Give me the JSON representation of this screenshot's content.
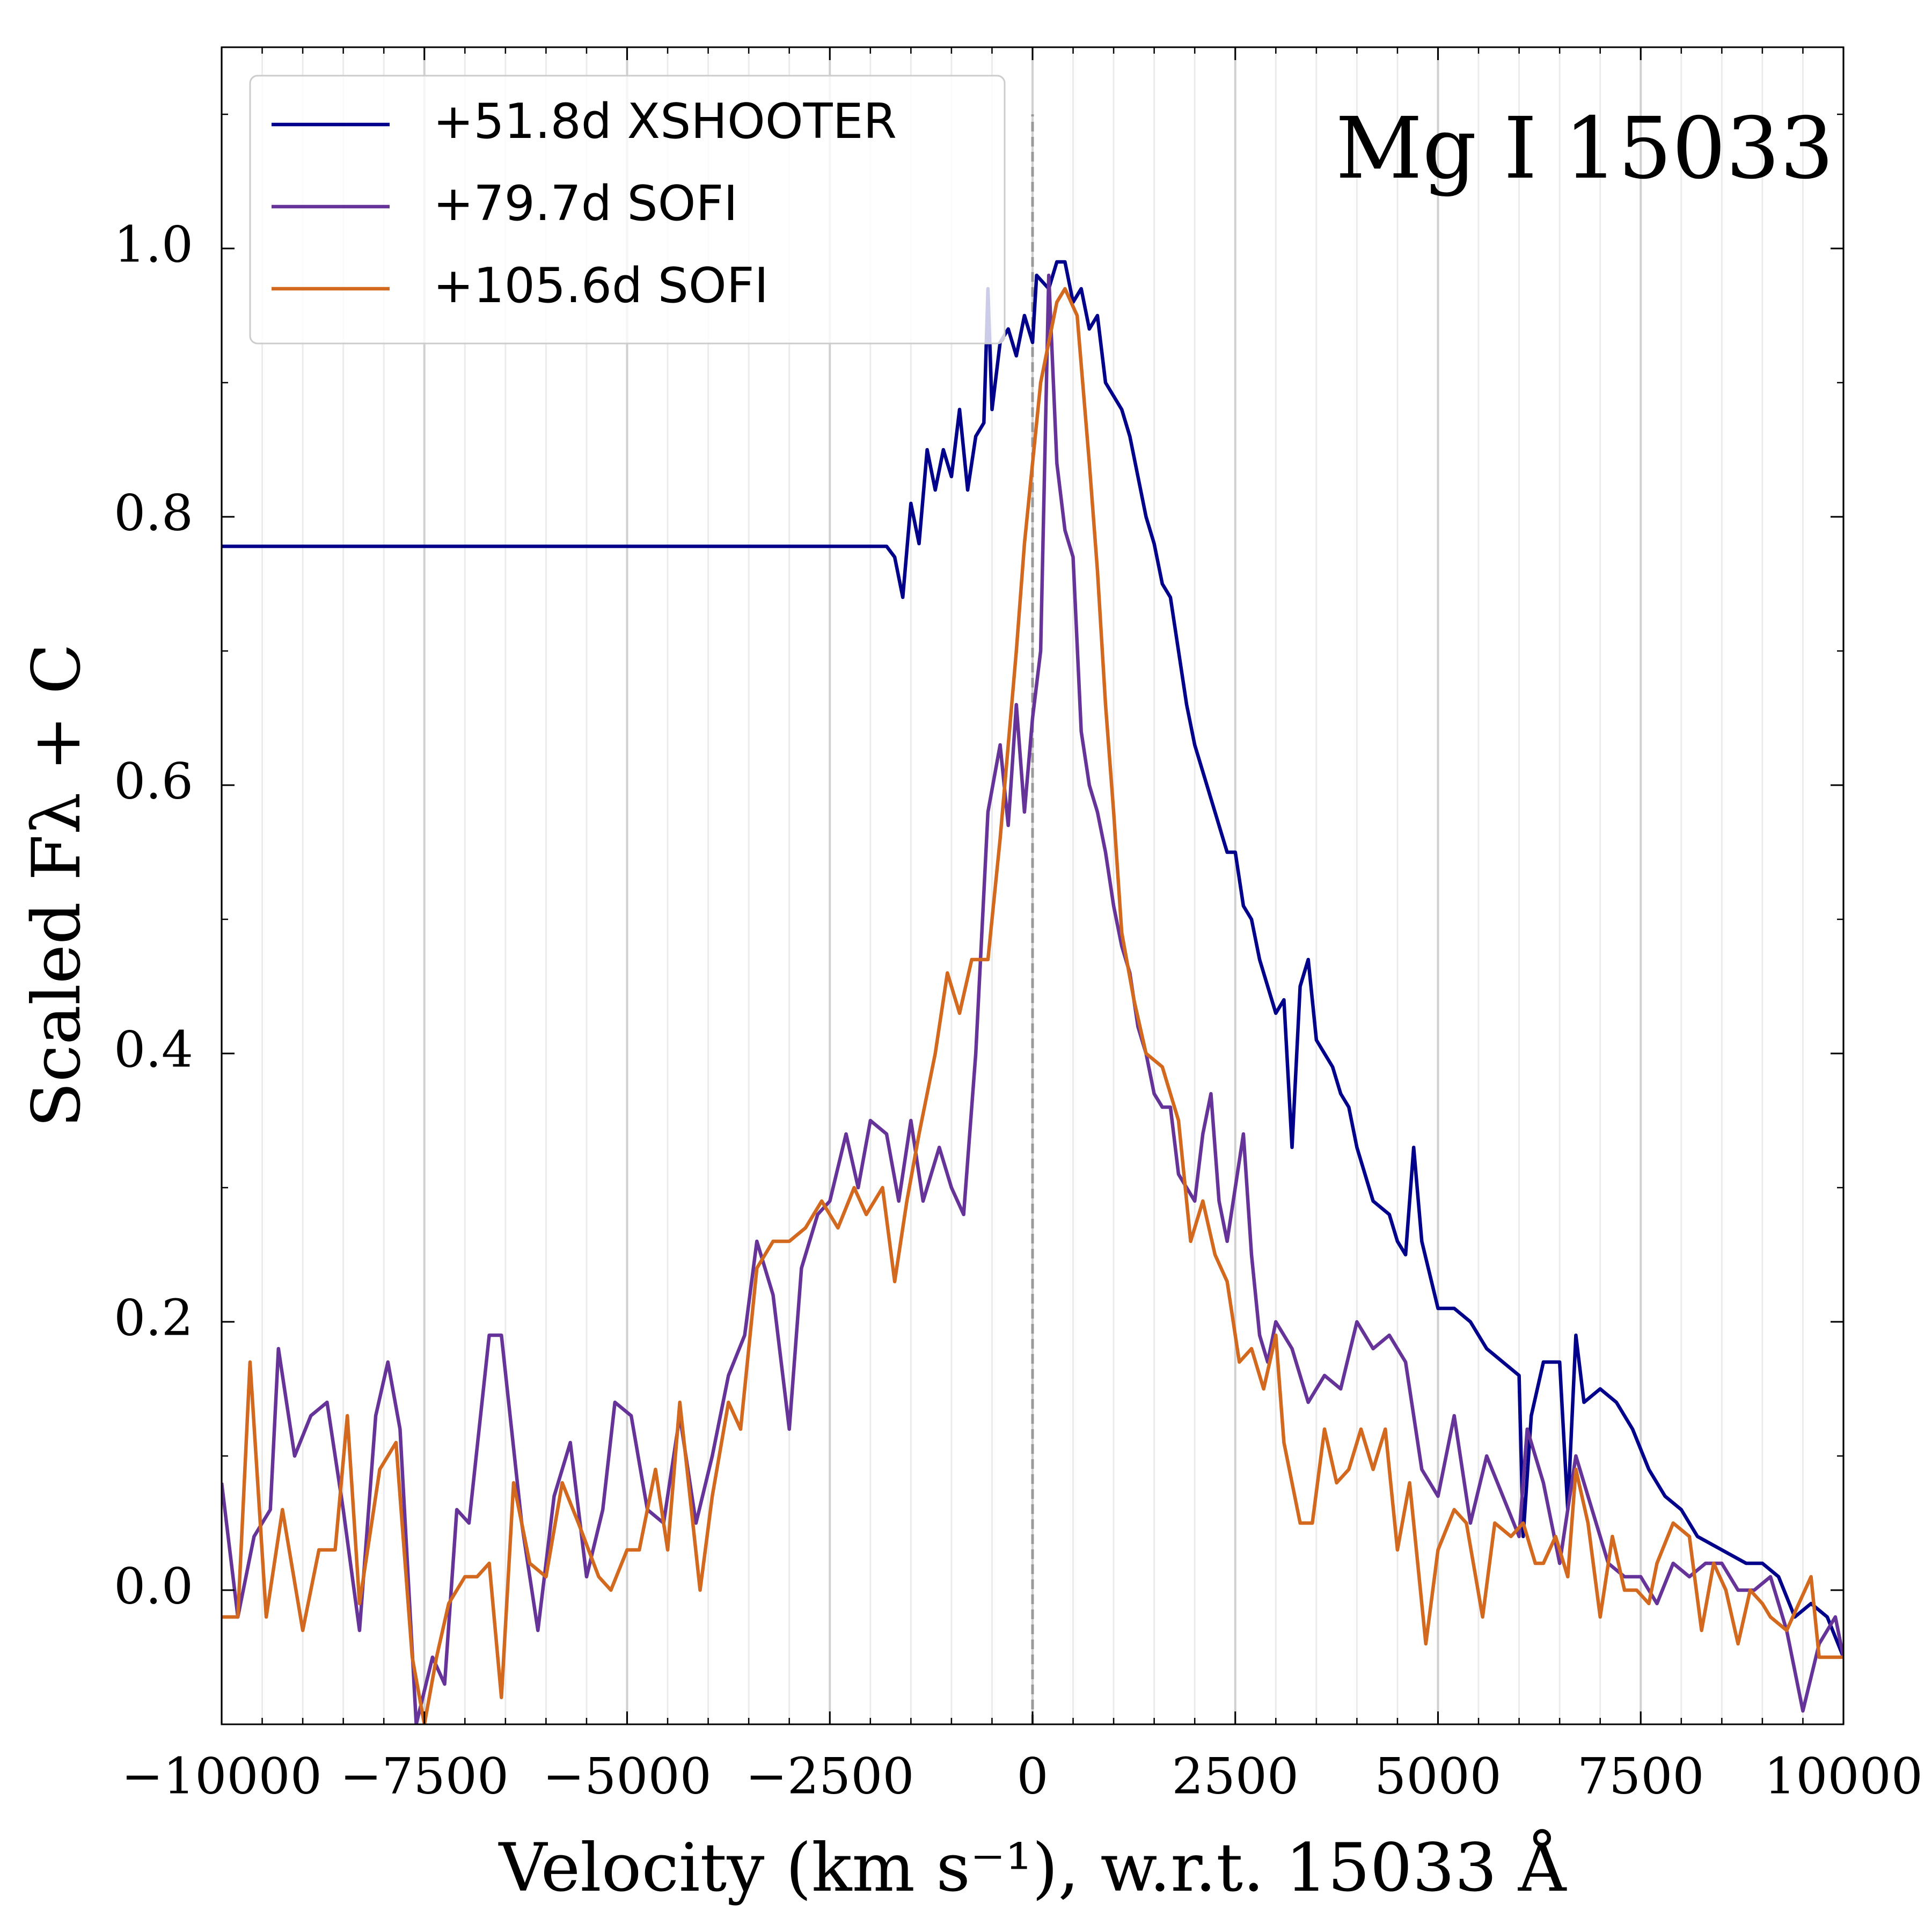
{
  "chart_data": {
    "type": "line",
    "xlabel": "Velocity (km s⁻¹), w.r.t. 15033 Å",
    "ylabel": "Scaled Fλ + C",
    "annotation": "Mg I 15033",
    "xlim": [
      -10000,
      10000
    ],
    "ylim": [
      -0.1,
      1.15
    ],
    "xticks": [
      {
        "value": -10000,
        "label": "−10000"
      },
      {
        "value": -7500,
        "label": "−7500"
      },
      {
        "value": -5000,
        "label": "−5000"
      },
      {
        "value": -2500,
        "label": "−2500"
      },
      0,
      2500,
      5000,
      7500,
      10000
    ],
    "yticks": [
      {
        "value": 0,
        "label": "0.0"
      },
      0.2,
      0.4,
      0.6,
      0.8,
      {
        "value": 1,
        "label": "1.0"
      }
    ],
    "xminorticks": [
      -9500,
      -9000,
      -8500,
      -8000,
      -7000,
      -6500,
      -6000,
      -5500,
      -4500,
      -4000,
      -3500,
      -3000,
      -2000,
      -1500,
      -1000,
      -500,
      500,
      1000,
      1500,
      2000,
      3000,
      3500,
      4000,
      4500,
      5500,
      6000,
      6500,
      7000,
      8000,
      8500,
      9000,
      9500
    ],
    "yminorticks": [
      -0.1,
      0.1,
      0.3,
      0.5,
      0.7,
      0.9,
      1.1
    ],
    "grid": "x",
    "legend": "upper left",
    "reference_line": {
      "x": 0,
      "ylim": [
        -0.1,
        1.1
      ],
      "color": "#999999"
    },
    "series": [
      {
        "name": "+51.8d XSHOOTER",
        "color": "#00008b",
        "x": [
          -10000,
          -1800,
          -1700,
          -1600,
          -1500,
          -1400,
          -1300,
          -1200,
          -1100,
          -1000,
          -900,
          -800,
          -700,
          -600,
          -550,
          -500,
          -400,
          -300,
          -200,
          -100,
          0,
          50,
          200,
          300,
          400,
          500,
          600,
          700,
          800,
          900,
          1000,
          1100,
          1200,
          1300,
          1400,
          1500,
          1600,
          1700,
          1800,
          1900,
          2000,
          2100,
          2200,
          2400,
          2500,
          2600,
          2700,
          2800,
          2900,
          3000,
          3100,
          3200,
          3300,
          3400,
          3500,
          3600,
          3700,
          3800,
          3900,
          4000,
          4100,
          4200,
          4400,
          4500,
          4600,
          4700,
          4800,
          5000,
          5200,
          5400,
          5600,
          5800,
          6000,
          6050,
          6150,
          6300,
          6500,
          6600,
          6700,
          6800,
          7000,
          7200,
          7400,
          7600,
          7800,
          8000,
          8200,
          8500,
          8800,
          9000,
          9200,
          9400,
          9600,
          9800,
          10000
        ],
        "values": [
          0.778,
          0.778,
          0.77,
          0.74,
          0.81,
          0.78,
          0.85,
          0.82,
          0.85,
          0.83,
          0.88,
          0.82,
          0.86,
          0.87,
          0.97,
          0.88,
          0.93,
          0.94,
          0.92,
          0.95,
          0.93,
          0.98,
          0.97,
          0.99,
          0.99,
          0.96,
          0.97,
          0.94,
          0.95,
          0.9,
          0.89,
          0.88,
          0.86,
          0.83,
          0.8,
          0.78,
          0.75,
          0.74,
          0.7,
          0.66,
          0.63,
          0.61,
          0.59,
          0.55,
          0.55,
          0.51,
          0.5,
          0.47,
          0.45,
          0.43,
          0.44,
          0.33,
          0.45,
          0.47,
          0.41,
          0.4,
          0.39,
          0.37,
          0.36,
          0.33,
          0.31,
          0.29,
          0.28,
          0.26,
          0.25,
          0.33,
          0.26,
          0.21,
          0.21,
          0.2,
          0.18,
          0.17,
          0.16,
          0.04,
          0.13,
          0.17,
          0.17,
          0.06,
          0.19,
          0.14,
          0.15,
          0.14,
          0.12,
          0.09,
          0.07,
          0.06,
          0.04,
          0.03,
          0.02,
          0.02,
          0.01,
          -0.02,
          -0.01,
          -0.02,
          -0.05
        ]
      },
      {
        "name": "+79.7d SOFI",
        "color": "#663399",
        "x": [
          -10000,
          -9800,
          -9600,
          -9400,
          -9300,
          -9100,
          -8900,
          -8700,
          -8500,
          -8300,
          -8100,
          -7950,
          -7800,
          -7600,
          -7400,
          -7250,
          -7100,
          -6950,
          -6700,
          -6550,
          -6300,
          -6100,
          -5900,
          -5700,
          -5500,
          -5300,
          -5150,
          -4950,
          -4750,
          -4550,
          -4350,
          -4150,
          -3950,
          -3750,
          -3550,
          -3400,
          -3200,
          -3000,
          -2850,
          -2650,
          -2500,
          -2300,
          -2150,
          -2000,
          -1800,
          -1650,
          -1500,
          -1350,
          -1150,
          -1000,
          -850,
          -700,
          -550,
          -400,
          -300,
          -200,
          -100,
          0,
          100,
          200,
          300,
          400,
          500,
          600,
          700,
          800,
          900,
          1000,
          1100,
          1200,
          1300,
          1400,
          1500,
          1600,
          1700,
          1800,
          1900,
          2000,
          2100,
          2200,
          2300,
          2400,
          2600,
          2700,
          2800,
          2900,
          3000,
          3200,
          3400,
          3600,
          3800,
          4000,
          4200,
          4400,
          4600,
          4800,
          5000,
          5200,
          5400,
          5600,
          5800,
          6000,
          6100,
          6300,
          6500,
          6700,
          6900,
          7100,
          7300,
          7500,
          7700,
          7900,
          8100,
          8300,
          8500,
          8700,
          8900,
          9100,
          9300,
          9500,
          9700,
          9900,
          10000
        ],
        "values": [
          0.08,
          -0.02,
          0.04,
          0.06,
          0.18,
          0.1,
          0.13,
          0.14,
          0.06,
          -0.03,
          0.13,
          0.17,
          0.12,
          -0.1,
          -0.05,
          -0.07,
          0.06,
          0.05,
          0.19,
          0.19,
          0.05,
          -0.03,
          0.07,
          0.11,
          0.01,
          0.06,
          0.14,
          0.13,
          0.06,
          0.05,
          0.13,
          0.05,
          0.1,
          0.16,
          0.19,
          0.26,
          0.22,
          0.12,
          0.24,
          0.28,
          0.29,
          0.34,
          0.3,
          0.35,
          0.34,
          0.29,
          0.35,
          0.29,
          0.33,
          0.3,
          0.28,
          0.4,
          0.58,
          0.63,
          0.57,
          0.66,
          0.58,
          0.65,
          0.7,
          0.98,
          0.84,
          0.79,
          0.77,
          0.64,
          0.6,
          0.58,
          0.55,
          0.51,
          0.48,
          0.46,
          0.42,
          0.4,
          0.37,
          0.36,
          0.36,
          0.31,
          0.3,
          0.29,
          0.34,
          0.37,
          0.29,
          0.26,
          0.34,
          0.25,
          0.19,
          0.17,
          0.2,
          0.18,
          0.14,
          0.16,
          0.15,
          0.2,
          0.18,
          0.19,
          0.17,
          0.09,
          0.07,
          0.13,
          0.05,
          0.1,
          0.07,
          0.04,
          0.12,
          0.08,
          0.02,
          0.1,
          0.06,
          0.02,
          0.01,
          0.01,
          -0.01,
          0.02,
          0.01,
          0.02,
          0.02,
          0.0,
          0.0,
          0.01,
          -0.03,
          -0.09,
          -0.04,
          -0.02,
          -0.05
        ]
      },
      {
        "name": "+105.6d SOFI",
        "color": "#d2691e",
        "x": [
          -10000,
          -9800,
          -9650,
          -9450,
          -9250,
          -9000,
          -8800,
          -8600,
          -8450,
          -8300,
          -8050,
          -7850,
          -7650,
          -7500,
          -7350,
          -7200,
          -7000,
          -6850,
          -6700,
          -6550,
          -6400,
          -6200,
          -6000,
          -5800,
          -5600,
          -5350,
          -5200,
          -5000,
          -4850,
          -4650,
          -4500,
          -4350,
          -4100,
          -3950,
          -3750,
          -3600,
          -3400,
          -3200,
          -3000,
          -2800,
          -2600,
          -2400,
          -2200,
          -2050,
          -1850,
          -1700,
          -1550,
          -1400,
          -1200,
          -1050,
          -900,
          -750,
          -550,
          -400,
          -200,
          -100,
          100,
          300,
          400,
          550,
          700,
          800,
          900,
          1000,
          1100,
          1250,
          1400,
          1600,
          1800,
          1950,
          2100,
          2250,
          2400,
          2550,
          2700,
          2850,
          3000,
          3100,
          3300,
          3450,
          3600,
          3750,
          3900,
          4050,
          4200,
          4350,
          4500,
          4650,
          4850,
          5000,
          5200,
          5350,
          5550,
          5700,
          5900,
          6050,
          6200,
          6300,
          6450,
          6600,
          6700,
          6850,
          7000,
          7150,
          7300,
          7450,
          7600,
          7700,
          7900,
          8100,
          8250,
          8400,
          8550,
          8700,
          8850,
          9000,
          9100,
          9300,
          9450,
          9600,
          9700,
          9850,
          10000
        ],
        "values": [
          -0.02,
          -0.02,
          0.17,
          -0.02,
          0.06,
          -0.03,
          0.03,
          0.03,
          0.13,
          -0.01,
          0.09,
          0.11,
          -0.05,
          -0.1,
          -0.05,
          -0.01,
          0.01,
          0.01,
          0.02,
          -0.08,
          0.08,
          0.02,
          0.01,
          0.08,
          0.05,
          0.01,
          0.0,
          0.03,
          0.03,
          0.09,
          0.03,
          0.14,
          0.0,
          0.07,
          0.14,
          0.12,
          0.24,
          0.26,
          0.26,
          0.27,
          0.29,
          0.27,
          0.3,
          0.28,
          0.3,
          0.23,
          0.29,
          0.34,
          0.4,
          0.46,
          0.43,
          0.47,
          0.47,
          0.56,
          0.7,
          0.78,
          0.9,
          0.96,
          0.97,
          0.95,
          0.84,
          0.76,
          0.66,
          0.58,
          0.49,
          0.44,
          0.4,
          0.39,
          0.35,
          0.26,
          0.29,
          0.25,
          0.23,
          0.17,
          0.18,
          0.15,
          0.19,
          0.11,
          0.05,
          0.05,
          0.12,
          0.08,
          0.09,
          0.12,
          0.09,
          0.12,
          0.03,
          0.08,
          -0.04,
          0.03,
          0.06,
          0.05,
          -0.02,
          0.05,
          0.04,
          0.05,
          0.02,
          0.02,
          0.04,
          0.01,
          0.09,
          0.05,
          -0.02,
          0.04,
          0.0,
          0.0,
          -0.01,
          0.02,
          0.05,
          0.04,
          -0.03,
          0.02,
          0.0,
          -0.04,
          0.0,
          -0.01,
          -0.02,
          -0.03,
          -0.01,
          0.01,
          -0.05,
          -0.05,
          -0.05
        ]
      }
    ]
  }
}
